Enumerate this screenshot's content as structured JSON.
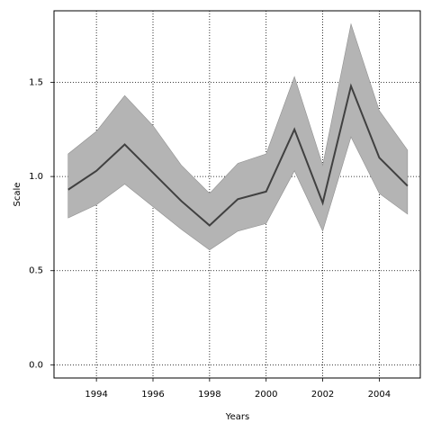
{
  "chart_data": {
    "type": "line",
    "xlabel": "Years",
    "ylabel": "Scale",
    "x": [
      1993,
      1994,
      1995,
      1996,
      1997,
      1998,
      1999,
      2000,
      2001,
      2002,
      2003,
      2004,
      2005
    ],
    "values": [
      0.93,
      1.03,
      1.17,
      1.02,
      0.87,
      0.74,
      0.88,
      0.92,
      1.25,
      0.86,
      1.48,
      1.1,
      0.95
    ],
    "lower": [
      0.78,
      0.85,
      0.96,
      0.84,
      0.72,
      0.61,
      0.71,
      0.75,
      1.03,
      0.71,
      1.21,
      0.91,
      0.8
    ],
    "upper": [
      1.12,
      1.24,
      1.43,
      1.27,
      1.06,
      0.91,
      1.07,
      1.12,
      1.53,
      1.06,
      1.81,
      1.35,
      1.14
    ],
    "color": "#404040",
    "band_color": "#b4b4b4",
    "xlim": [
      1992.5,
      2005.45
    ],
    "ylim": [
      -0.07,
      1.88
    ],
    "xticks": [
      1994,
      1996,
      1998,
      2000,
      2002,
      2004
    ],
    "yticks": [
      {
        "value": 0,
        "label": "0.0"
      },
      0.5,
      {
        "value": 1,
        "label": "1.0"
      },
      1.5
    ],
    "grid": true
  }
}
